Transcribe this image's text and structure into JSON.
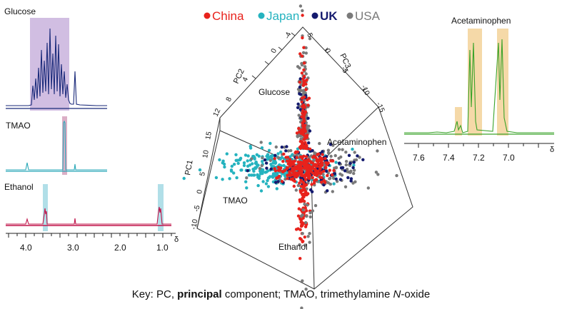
{
  "legend": [
    {
      "name": "China",
      "color": "#e8221c"
    },
    {
      "name": "Japan",
      "color": "#25b3bf"
    },
    {
      "name": "UK",
      "color": "#141a6e"
    },
    {
      "name": "USA",
      "color": "#7a7a7a"
    }
  ],
  "key_text": {
    "prefix": "Key: PC, ",
    "bold": "principal",
    "middle": " component; TMAO, trimethylamine ",
    "italic": "N",
    "suffix": "-oxide"
  },
  "nmr_left": {
    "axis_label": "δ",
    "ticks": [
      "4.0",
      "3.0",
      "2.0",
      "1.0"
    ],
    "panels": [
      {
        "label": "Glucose",
        "color": "#1a2a7a",
        "highlight": "#c9b3dd"
      },
      {
        "label": "TMAO",
        "color": "#2aa8b8",
        "highlight": "#d7a6c0"
      },
      {
        "label": "Ethanol",
        "color": "#c0144a",
        "highlight": "#a8dbe6"
      }
    ]
  },
  "nmr_right": {
    "label": "Acetaminophen",
    "color": "#3aa32a",
    "highlight": "#f5d9a8",
    "axis_label": "δ",
    "ticks": [
      "7.6",
      "7.4",
      "7.2",
      "7.0"
    ]
  },
  "pca": {
    "pc1_label": "PC1",
    "pc2_label": "PC2",
    "pc3_label": "PC3",
    "pc1_ticks": [
      "15",
      "10",
      "5",
      "0",
      "-5",
      "-10"
    ],
    "pc2_ticks": [
      "12",
      "8",
      "4",
      "0",
      "-4"
    ],
    "pc3_ticks": [
      "5",
      "0",
      "-5",
      "-10",
      "-15"
    ],
    "annotations": {
      "glucose": "Glucose",
      "acetaminophen": "Acetaminophen",
      "tmao": "TMAO",
      "ethanol": "Ethanol"
    }
  },
  "chart_data": {
    "type": "scatter",
    "title": "",
    "series": [
      {
        "name": "China"
      },
      {
        "name": "Japan"
      },
      {
        "name": "UK"
      },
      {
        "name": "USA"
      }
    ],
    "panels": [
      {
        "type": "line",
        "label": "Glucose",
        "x_ticks": [
          "4.0",
          "3.0",
          "2.0",
          "1.0"
        ],
        "xlabel": "δ"
      },
      {
        "type": "line",
        "label": "TMAO",
        "x_ticks": [
          "4.0",
          "3.0",
          "2.0",
          "1.0"
        ],
        "xlabel": "δ"
      },
      {
        "type": "line",
        "label": "Ethanol",
        "x_ticks": [
          "4.0",
          "3.0",
          "2.0",
          "1.0"
        ],
        "xlabel": "δ"
      },
      {
        "type": "line",
        "label": "Acetaminophen",
        "x_ticks": [
          "7.6",
          "7.4",
          "7.2",
          "7.0"
        ],
        "xlabel": "δ"
      },
      {
        "type": "scatter",
        "axes": [
          "PC1",
          "PC2",
          "PC3"
        ],
        "annotations": [
          "Glucose",
          "Acetaminophen",
          "TMAO",
          "Ethanol"
        ]
      }
    ]
  }
}
